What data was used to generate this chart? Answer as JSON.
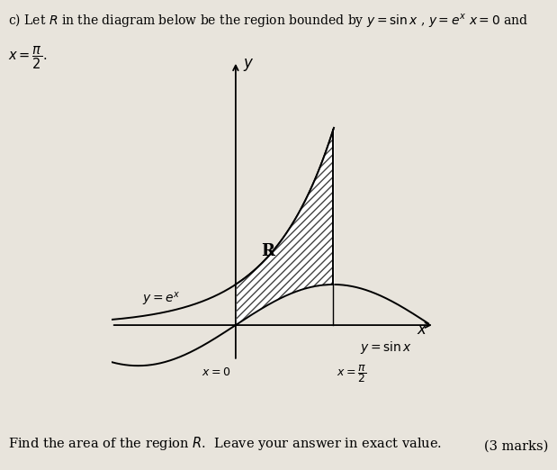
{
  "title_line1": "c) Let $R$ in the diagram below be the region bounded by $y = \\sin x$ , $y = e^x$ $x = 0$ and",
  "title_line2": "$x = \\dfrac{\\pi}{2}$.",
  "background_color": "#e8e4dc",
  "xlabel": "$x$",
  "ylabel": "$y$",
  "xlim": [
    -2.0,
    3.2
  ],
  "ylim": [
    -1.6,
    6.5
  ],
  "x0_label": "$x = 0$",
  "xpi2_label": "$x = \\dfrac{\\pi}{2}$",
  "ye_label": "$y = e^x$",
  "ysin_label": "$y = \\sin x$",
  "R_label": "R",
  "footer_text": "Find the area of the region $R$.  Leave your answer in exact value.",
  "footer_right": "(3 marks)",
  "curve_color": "#000000",
  "hatch_color": "#555555",
  "label_fontsize": 10,
  "footer_fontsize": 10.5
}
